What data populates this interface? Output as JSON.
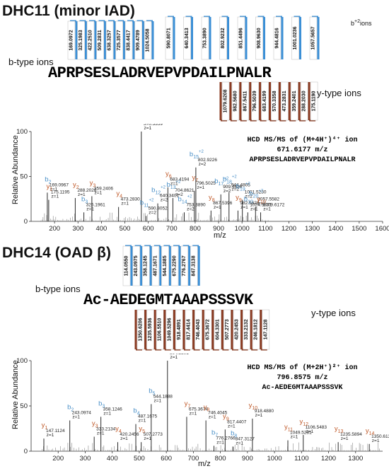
{
  "panel1": {
    "title": "DHC11 (minor IAD)",
    "b_label": "b-type ions",
    "y_label": "y-type ions",
    "b2_label_main": "b",
    "b2_label_sup": "+2",
    "b2_label_tail": "ions",
    "sequence": "APRPSESLADRVEPVPDAILPNALR",
    "b_ions": [
      "169.0972",
      "325.1983",
      "422.2510",
      "509.2831",
      "638.3257",
      "725.3577",
      "838.4417",
      "909.4789",
      "1024.5058"
    ],
    "b2_ions": [
      "590.8071",
      "640.3413",
      "753.3890",
      "802.9232",
      "851.4496",
      "908.9630",
      "944.4816",
      "1001.0236",
      "1057.5657"
    ],
    "y_ions": [
      "1079.6208",
      "982.5680",
      "867.5411",
      "796.5039",
      "683.4199",
      "570.3358",
      "473.2831",
      "359.2401",
      "288.2030",
      "175.1190"
    ],
    "info_line1": "HCD MS/MS of (M+4H⁺)⁴⁺ ion",
    "info_line2": "671.6177 m/z",
    "info_line3": "APRPSESLADRVEPVPDAILPNALR",
    "y_axis_label": "Relative Abundance",
    "x_axis_label": "m/z"
  },
  "panel2": {
    "title": "DHC14 (OAD β)",
    "b_label": "b-type ions",
    "y_label": "y-type ions",
    "sequence": "Ac-AEDEGMTAAAPSSSVK",
    "b_ions": [
      "114.0550",
      "243.0975",
      "358.1245",
      "487.1671",
      "544.1885",
      "675.2290",
      "776.2767",
      "847.3138"
    ],
    "y_ions": [
      "1350.6206",
      "1235.5936",
      "1106.5510",
      "1049.5296",
      "918.4891",
      "817.4414",
      "746.4043",
      "675.3672",
      "604.3301",
      "507.2773",
      "420.2453",
      "333.2132",
      "246.1812",
      "147.1128"
    ],
    "info_line1": "HCD MS/MS of (M+2H⁺)²⁺ ion",
    "info_line2": "796.8575 m/z",
    "info_line3": "Ac-AEDEGMTAAAPSSSVK",
    "y_axis_label": "Relative Abundance",
    "x_axis_label": "m/z"
  },
  "chart_data": [
    {
      "type": "bar",
      "name": "DHC11 HCD MS/MS spectrum",
      "xlim": [
        100,
        1600
      ],
      "ylim": [
        0,
        100
      ],
      "xticks": [
        200,
        300,
        400,
        500,
        600,
        700,
        800,
        900,
        1000,
        1100,
        1200,
        1300,
        1400,
        1500,
        1600
      ],
      "yticks": [
        0,
        50,
        100
      ],
      "colors": {
        "y": "#c05a2a",
        "b": "#4a90c8",
        "noise": "#888888"
      },
      "peaks": [
        {
          "mz": 169.0967,
          "rel": 32,
          "ion": "b",
          "num": "2",
          "sup": "",
          "z": "z=1",
          "value": "169.0967"
        },
        {
          "mz": 175.1195,
          "rel": 24,
          "ion": "y",
          "num": "1",
          "sup": "",
          "z": "z=1",
          "value": "175.1195"
        },
        {
          "mz": 288.2028,
          "rel": 26,
          "ion": "y",
          "num": "2",
          "sup": "",
          "z": "z=1",
          "value": "288.2028"
        },
        {
          "mz": 325.1961,
          "rel": 10,
          "ion": "b",
          "num": "3",
          "sup": "",
          "z": "z=1",
          "value": "325.1961"
        },
        {
          "mz": 359.2406,
          "rel": 28,
          "ion": "y",
          "num": "3",
          "sup": "",
          "z": "z=1",
          "value": "359.2406"
        },
        {
          "mz": 473.283,
          "rel": 16,
          "ion": "y",
          "num": "4",
          "sup": "",
          "z": "z=1",
          "value": "473.2830"
        },
        {
          "mz": 570.3359,
          "rel": 100,
          "ion": "y",
          "num": "5",
          "sup": "",
          "z": "z=1",
          "value": "570.3359"
        },
        {
          "mz": 590.8052,
          "rel": 6,
          "ion": "b",
          "num": "11",
          "sup": "+2",
          "z": "z=2",
          "value": "590.8052"
        },
        {
          "mz": 640.3401,
          "rel": 20,
          "ion": "b",
          "num": "12",
          "sup": "+2",
          "z": "z=2",
          "value": "640.3401"
        },
        {
          "mz": 683.4194,
          "rel": 38,
          "ion": "y",
          "num": "6",
          "sup": "",
          "z": "z=1",
          "value": "683.4194"
        },
        {
          "mz": 704.8621,
          "rel": 26,
          "ion": "b",
          "num": "13",
          "sup": "+2",
          "z": "z=2",
          "value": "704.8621"
        },
        {
          "mz": 753.389,
          "rel": 10,
          "ion": "b",
          "num": "14",
          "sup": "+2",
          "z": "z=2",
          "value": "753.3890"
        },
        {
          "mz": 796.5025,
          "rel": 34,
          "ion": "y",
          "num": "7",
          "sup": "",
          "z": "z=1",
          "value": "796.5025"
        },
        {
          "mz": 802.9226,
          "rel": 60,
          "ion": "b",
          "num": "15",
          "sup": "+2",
          "z": "z=2",
          "value": "802.9226"
        },
        {
          "mz": 867.5396,
          "rel": 12,
          "ion": "y",
          "num": "8",
          "sup": "",
          "z": "z=1",
          "value": "867.5396"
        },
        {
          "mz": 909.4636,
          "rel": 30,
          "ion": "b",
          "num": "17",
          "sup": "+2",
          "z": "z=2",
          "value": "909.4636"
        },
        {
          "mz": 944.4805,
          "rel": 32,
          "ion": "b",
          "num": "18",
          "sup": "+2",
          "z": "z=2",
          "value": "944.4805"
        },
        {
          "mz": 982.5628,
          "rel": 12,
          "ion": "y",
          "num": "9",
          "sup": "",
          "z": "z=1",
          "value": "982.5628"
        },
        {
          "mz": 1001.523,
          "rel": 24,
          "ion": "b",
          "num": "19",
          "sup": "+2",
          "z": "z=2",
          "value": "1001.5230"
        },
        {
          "mz": 1024.5031,
          "rel": 10,
          "ion": "b",
          "num": "10",
          "sup": "",
          "z": "z=1",
          "value": "1024.5031"
        },
        {
          "mz": 1057.5582,
          "rel": 16,
          "ion": "b",
          "num": "20",
          "sup": "+2",
          "z": "z=2",
          "value": "1057.5582"
        },
        {
          "mz": 1079.6172,
          "rel": 10,
          "ion": "y",
          "num": "10",
          "sup": "",
          "z": "z=1",
          "value": "1079.6172"
        }
      ]
    },
    {
      "type": "bar",
      "name": "DHC14 HCD MS/MS spectrum",
      "xlim": [
        100,
        1400
      ],
      "ylim": [
        0,
        100
      ],
      "xticks": [
        200,
        300,
        400,
        500,
        600,
        700,
        800,
        900,
        1000,
        1100,
        1200,
        1300
      ],
      "yticks": [
        0,
        50,
        100
      ],
      "colors": {
        "y": "#c05a2a",
        "b": "#4a90c8",
        "noise": "#888888"
      },
      "peaks": [
        {
          "mz": 147.1124,
          "rel": 14,
          "ion": "y",
          "num": "1",
          "sup": "",
          "z": "z=1",
          "value": "147.1124"
        },
        {
          "mz": 243.0974,
          "rel": 34,
          "ion": "b",
          "num": "2",
          "sup": "",
          "z": "z=1",
          "value": "243.0974"
        },
        {
          "mz": 333.2134,
          "rel": 16,
          "ion": "y",
          "num": "3",
          "sup": "",
          "z": "z=1",
          "value": "333.2134"
        },
        {
          "mz": 358.1246,
          "rel": 38,
          "ion": "b",
          "num": "3",
          "sup": "",
          "z": "z=1",
          "value": "358.1246"
        },
        {
          "mz": 420.2456,
          "rel": 10,
          "ion": "y",
          "num": "4",
          "sup": "",
          "z": "z=1",
          "value": "420.2456"
        },
        {
          "mz": 487.1675,
          "rel": 30,
          "ion": "b",
          "num": "4",
          "sup": "",
          "z": "z=1",
          "value": "487.1675"
        },
        {
          "mz": 507.2773,
          "rel": 10,
          "ion": "y",
          "num": "5",
          "sup": "",
          "z": "z=1",
          "value": "507.2773"
        },
        {
          "mz": 544.1888,
          "rel": 52,
          "ion": "b",
          "num": "5",
          "sup": "",
          "z": "z=1",
          "value": "544.1888"
        },
        {
          "mz": 604.3301,
          "rel": 100,
          "ion": "y",
          "num": "6",
          "sup": "",
          "z": "z=1",
          "value": "604.3301"
        },
        {
          "mz": 675.3674,
          "rel": 38,
          "ion": "y",
          "num": "7",
          "sup": "",
          "z": "z=1",
          "value": "675.3674"
        },
        {
          "mz": 746.4045,
          "rel": 34,
          "ion": "y",
          "num": "8",
          "sup": "",
          "z": "z=1",
          "value": "746.4045"
        },
        {
          "mz": 776.2766,
          "rel": 6,
          "ion": "b",
          "num": "7",
          "sup": "",
          "z": "z=1",
          "value": "776.2766"
        },
        {
          "mz": 817.4407,
          "rel": 24,
          "ion": "y",
          "num": "9",
          "sup": "",
          "z": "z=1",
          "value": "817.4407"
        },
        {
          "mz": 847.3127,
          "rel": 5,
          "ion": "b",
          "num": "8",
          "sup": "",
          "z": "z=1",
          "value": "847.3127"
        },
        {
          "mz": 918.488,
          "rel": 36,
          "ion": "y",
          "num": "10",
          "sup": "",
          "z": "z=1",
          "value": "918.4880"
        },
        {
          "mz": 1049.5281,
          "rel": 12,
          "ion": "y",
          "num": "11",
          "sup": "",
          "z": "z=1",
          "value": "1049.5281"
        },
        {
          "mz": 1106.5483,
          "rel": 18,
          "ion": "y",
          "num": "12",
          "sup": "",
          "z": "z=1",
          "value": "1106.5483"
        },
        {
          "mz": 1235.5894,
          "rel": 10,
          "ion": "y",
          "num": "13",
          "sup": "",
          "z": "z=1",
          "value": "1235.5894"
        },
        {
          "mz": 1350.6136,
          "rel": 8,
          "ion": "y",
          "num": "14",
          "sup": "",
          "z": "z=1",
          "value": "1350.6136"
        }
      ]
    }
  ]
}
